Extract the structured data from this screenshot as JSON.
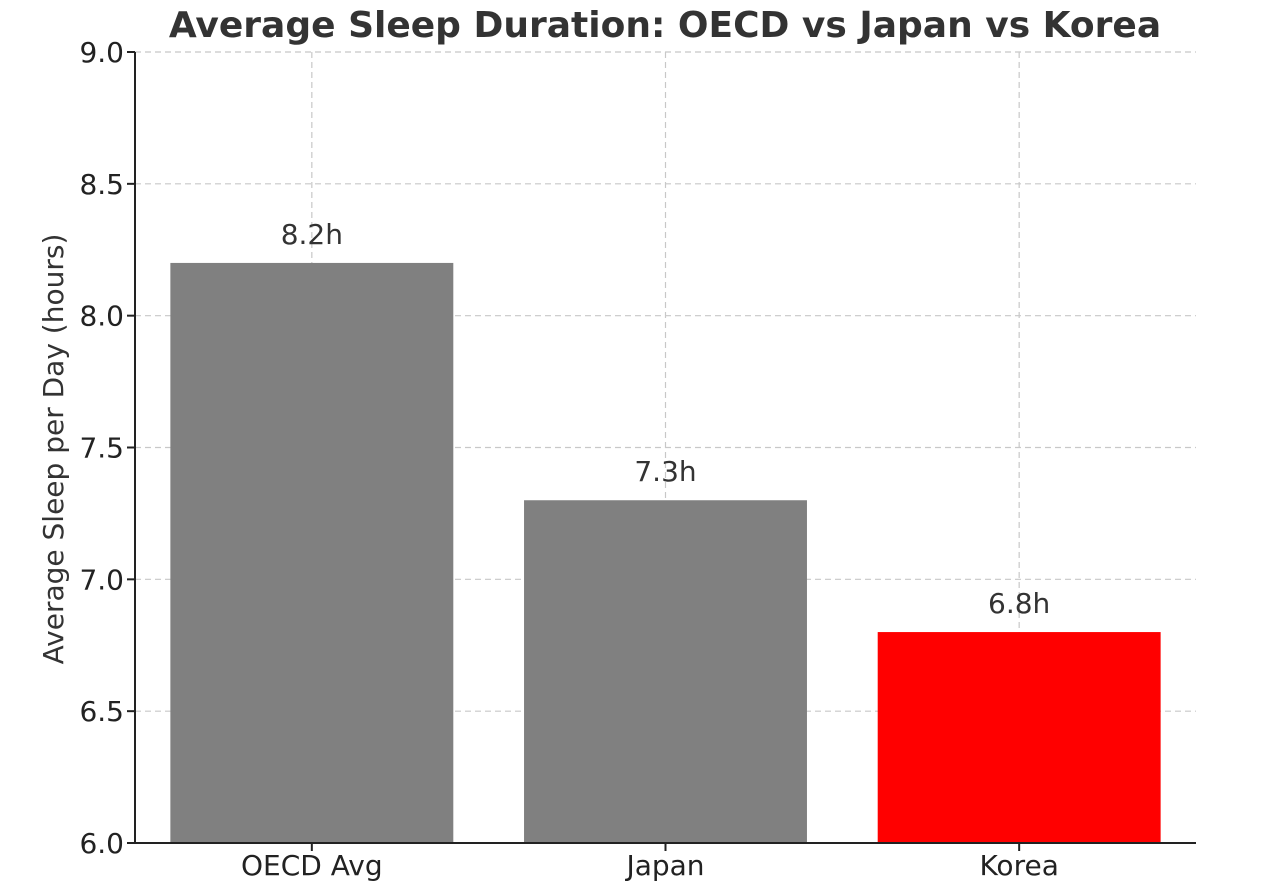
{
  "chart_data": {
    "type": "bar",
    "title": "Average Sleep Duration: OECD vs Japan vs Korea",
    "xlabel": "",
    "ylabel": "Average Sleep per Day (hours)",
    "categories": [
      "OECD Avg",
      "Japan",
      "Korea"
    ],
    "values": [
      8.2,
      7.3,
      6.8
    ],
    "data_labels": [
      "8.2h",
      "7.3h",
      "6.8h"
    ],
    "bar_colors": [
      "#808080",
      "#808080",
      "#ff0000"
    ],
    "ylim": [
      6.0,
      9.0
    ],
    "yticks": [
      6.0,
      6.5,
      7.0,
      7.5,
      8.0,
      8.5,
      9.0
    ],
    "ytick_labels": [
      "6.0",
      "6.5",
      "7.0",
      "7.5",
      "8.0",
      "8.5",
      "9.0"
    ],
    "grid": true
  }
}
